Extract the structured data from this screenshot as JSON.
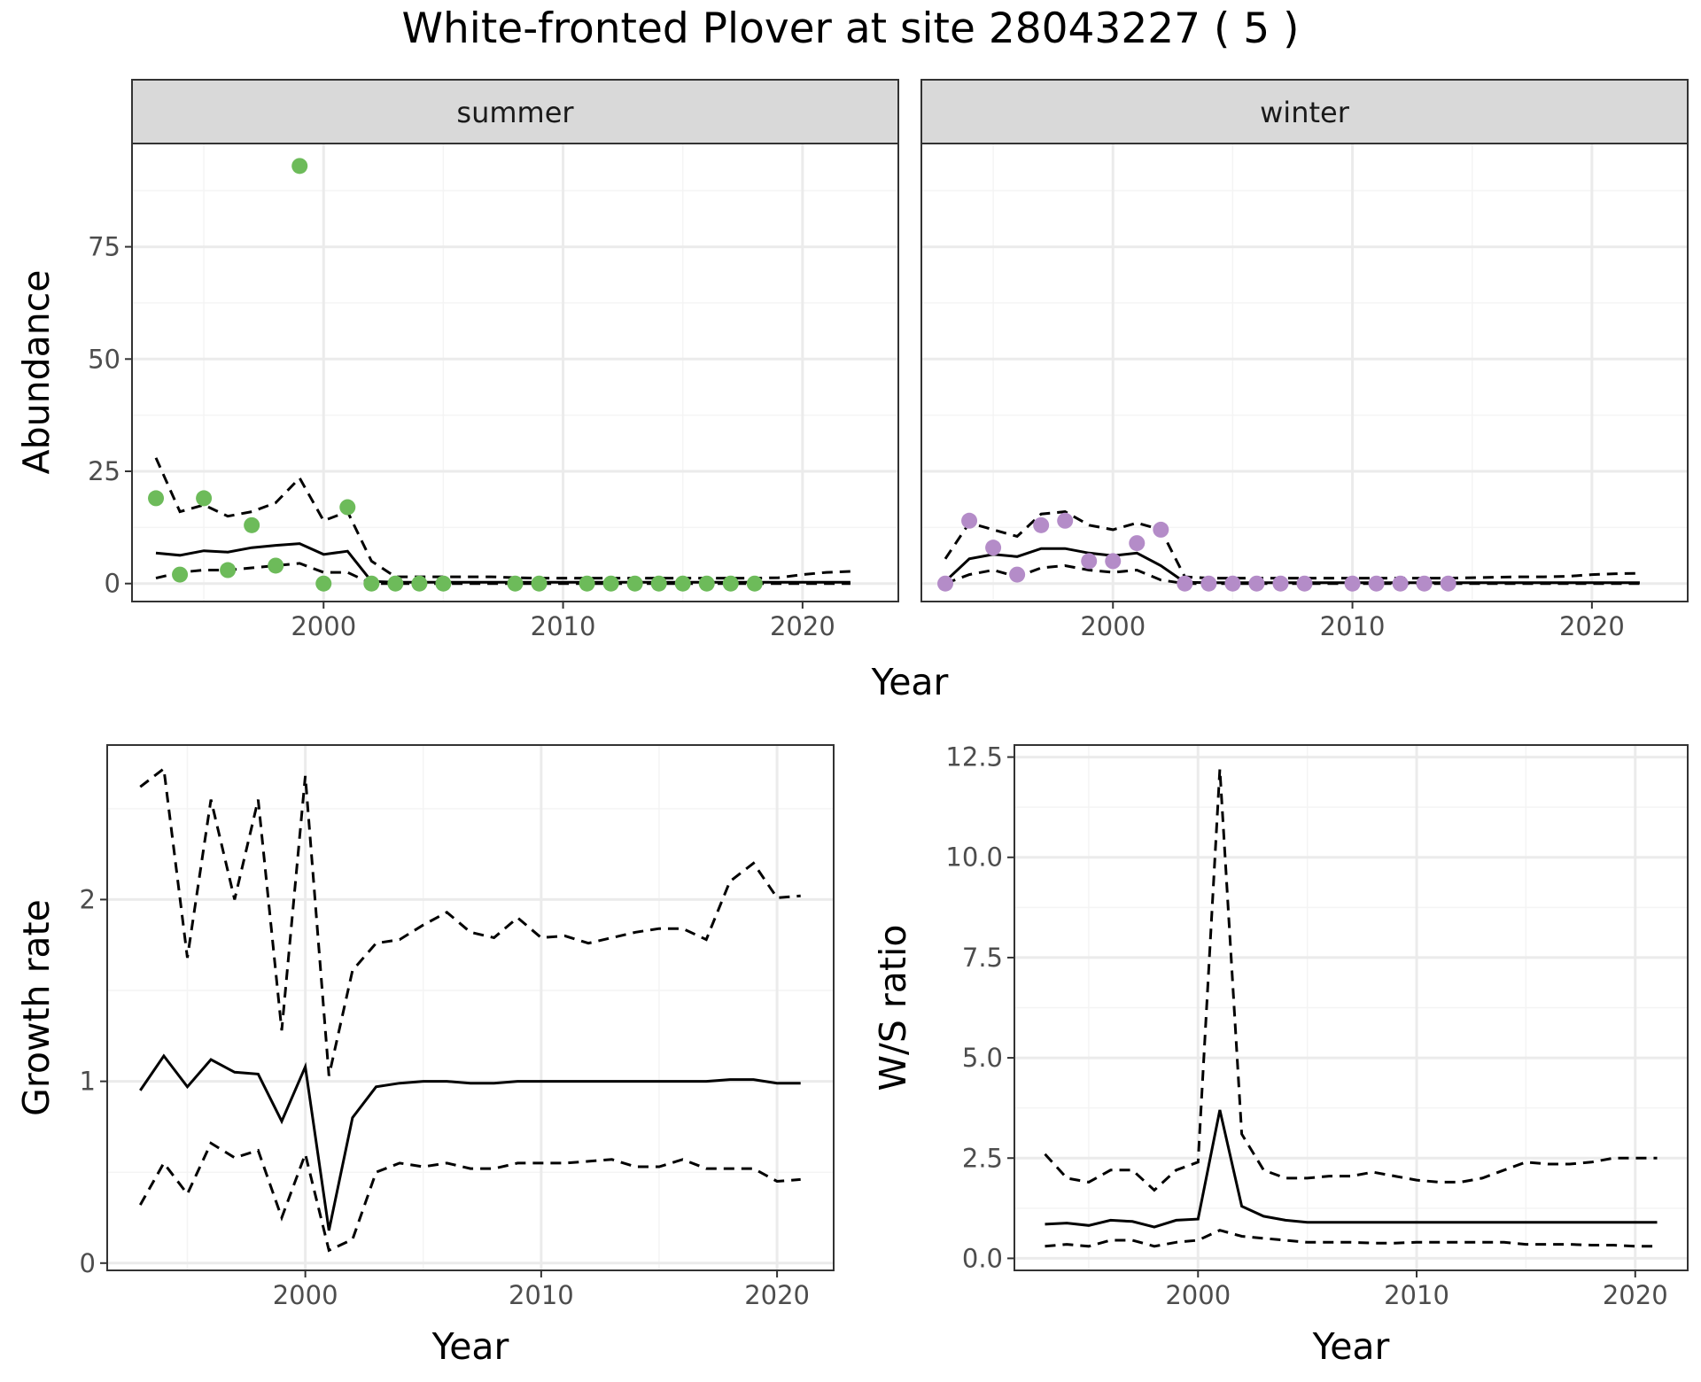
{
  "figure": {
    "title": "White-fronted Plover at site 28043227 ( 5 )"
  },
  "colors": {
    "summer_points": "#6DBB5A",
    "winter_points": "#B48CC8",
    "lines": "#000000",
    "strip_fill": "#D9D9D9",
    "grid_major": "#EBEBEB",
    "grid_minor": "#F4F4F4"
  },
  "chart_data": [
    {
      "id": "abundance",
      "type": "scatter",
      "xlabel": "Year",
      "ylabel": "Abundance",
      "xlim": [
        1992,
        2024
      ],
      "ylim": [
        -4,
        98
      ],
      "xticks": [
        2000,
        2010,
        2020
      ],
      "yticks": [
        0,
        25,
        50,
        75
      ],
      "grid": true,
      "facets": [
        {
          "label": "summer",
          "points": {
            "x": [
              1993,
              1994,
              1995,
              1996,
              1997,
              1998,
              1999,
              2000,
              2001,
              2002,
              2003,
              2004,
              2005,
              2008,
              2009,
              2011,
              2012,
              2013,
              2014,
              2015,
              2016,
              2017,
              2018
            ],
            "y": [
              19,
              2,
              19,
              3,
              13,
              4,
              93,
              0,
              17,
              0,
              0,
              0,
              0,
              0,
              0,
              0,
              0,
              0,
              0,
              0,
              0,
              0,
              0
            ]
          },
          "x": [
            1993,
            1994,
            1995,
            1996,
            1997,
            1998,
            1999,
            2000,
            2001,
            2002,
            2003,
            2004,
            2005,
            2006,
            2007,
            2008,
            2009,
            2010,
            2011,
            2012,
            2013,
            2014,
            2015,
            2016,
            2017,
            2018,
            2019,
            2020,
            2021,
            2022
          ],
          "mean": [
            6.8,
            6.3,
            7.3,
            7.0,
            8.0,
            8.5,
            8.9,
            6.5,
            7.2,
            0.5,
            0.3,
            0.3,
            0.3,
            0.3,
            0.3,
            0.3,
            0.3,
            0.3,
            0.3,
            0.3,
            0.3,
            0.3,
            0.3,
            0.3,
            0.3,
            0.3,
            0.3,
            0.3,
            0.3,
            0.3
          ],
          "upper": [
            28,
            16,
            17.5,
            15,
            16,
            18,
            23.5,
            14,
            16,
            5,
            1.5,
            1.5,
            1.5,
            1.5,
            1.5,
            1.3,
            1.2,
            1.2,
            1.2,
            1.2,
            1.2,
            1.2,
            1.2,
            1.2,
            1.2,
            1.2,
            1.3,
            2.0,
            2.5,
            2.7
          ],
          "lower": [
            1.2,
            2.5,
            3.0,
            3.0,
            3.5,
            4.0,
            4.5,
            2.5,
            2.5,
            0,
            0,
            0,
            0,
            0,
            0,
            0,
            0,
            0,
            0,
            0,
            0,
            0,
            0,
            0,
            0,
            0,
            0,
            0,
            0,
            0
          ]
        },
        {
          "label": "winter",
          "points": {
            "x": [
              1993,
              1994,
              1995,
              1996,
              1997,
              1998,
              1999,
              2000,
              2001,
              2002,
              2003,
              2004,
              2005,
              2006,
              2007,
              2008,
              2010,
              2011,
              2012,
              2013,
              2014
            ],
            "y": [
              0,
              14,
              8,
              2,
              13,
              14,
              5,
              5,
              9,
              12,
              0,
              0,
              0,
              0,
              0,
              0,
              0,
              0,
              0,
              0,
              0
            ]
          },
          "x": [
            1993,
            1994,
            1995,
            1996,
            1997,
            1998,
            1999,
            2000,
            2001,
            2002,
            2003,
            2004,
            2005,
            2006,
            2007,
            2008,
            2009,
            2010,
            2011,
            2012,
            2013,
            2014,
            2015,
            2016,
            2017,
            2018,
            2019,
            2020,
            2021,
            2022
          ],
          "mean": [
            0.5,
            5.5,
            6.5,
            6.0,
            7.8,
            7.8,
            6.8,
            6.2,
            6.8,
            4.0,
            0.3,
            0.2,
            0.2,
            0.2,
            0.2,
            0.2,
            0.2,
            0.2,
            0.2,
            0.2,
            0.2,
            0.2,
            0.2,
            0.2,
            0.2,
            0.2,
            0.2,
            0.2,
            0.2,
            0.2
          ],
          "upper": [
            5.5,
            13.5,
            12.0,
            10.5,
            15.5,
            16.0,
            13.0,
            12.0,
            13.5,
            12.0,
            1.5,
            1.2,
            1.2,
            1.2,
            1.2,
            1.2,
            1.2,
            1.2,
            1.2,
            1.2,
            1.2,
            1.2,
            1.3,
            1.4,
            1.5,
            1.5,
            1.6,
            2.0,
            2.2,
            2.3
          ],
          "lower": [
            0,
            2.0,
            3.0,
            1.5,
            3.5,
            4.0,
            3.0,
            2.5,
            3.0,
            0.8,
            0,
            0,
            0,
            0,
            0,
            0,
            0,
            0,
            0,
            0,
            0,
            0,
            0,
            0,
            0,
            0,
            0,
            0,
            0,
            0
          ]
        }
      ],
      "panel_xlabel": "Year"
    },
    {
      "id": "growth",
      "type": "line",
      "xlabel": "Year",
      "ylabel": "Growth rate",
      "xlim": [
        1991.6,
        2022.4
      ],
      "ylim": [
        -0.04,
        2.85
      ],
      "xticks": [
        2000,
        2010,
        2020
      ],
      "yticks": [
        0,
        1,
        2
      ],
      "grid": true,
      "x": [
        1993,
        1994,
        1995,
        1996,
        1997,
        1998,
        1999,
        2000,
        2001,
        2002,
        2003,
        2004,
        2005,
        2006,
        2007,
        2008,
        2009,
        2010,
        2011,
        2012,
        2013,
        2014,
        2015,
        2016,
        2017,
        2018,
        2019,
        2020,
        2021
      ],
      "mean": [
        0.95,
        1.14,
        0.97,
        1.12,
        1.05,
        1.04,
        0.78,
        1.08,
        0.18,
        0.8,
        0.97,
        0.99,
        1.0,
        1.0,
        0.99,
        0.99,
        1.0,
        1.0,
        1.0,
        1.0,
        1.0,
        1.0,
        1.0,
        1.0,
        1.0,
        1.01,
        1.01,
        0.99,
        0.99
      ],
      "upper": [
        2.62,
        2.72,
        1.68,
        2.55,
        2.0,
        2.55,
        1.28,
        2.68,
        1.03,
        1.61,
        1.76,
        1.78,
        1.86,
        1.93,
        1.82,
        1.79,
        1.9,
        1.79,
        1.8,
        1.76,
        1.79,
        1.82,
        1.84,
        1.84,
        1.78,
        2.1,
        2.2,
        2.01,
        2.02
      ],
      "lower": [
        0.32,
        0.55,
        0.38,
        0.66,
        0.58,
        0.62,
        0.25,
        0.6,
        0.07,
        0.13,
        0.5,
        0.55,
        0.53,
        0.55,
        0.52,
        0.52,
        0.55,
        0.55,
        0.55,
        0.56,
        0.57,
        0.53,
        0.53,
        0.57,
        0.52,
        0.52,
        0.52,
        0.45,
        0.46
      ]
    },
    {
      "id": "ratio",
      "type": "line",
      "xlabel": "Year",
      "ylabel": "W/S ratio",
      "xlim": [
        1991.6,
        2022.4
      ],
      "ylim": [
        -0.3,
        12.8
      ],
      "xticks": [
        2000,
        2010,
        2020
      ],
      "yticks": [
        0.0,
        2.5,
        5.0,
        7.5,
        10.0,
        12.5
      ],
      "ytick_labels": [
        "0.0",
        "2.5",
        "5.0",
        "7.5",
        "10.0",
        "12.5"
      ],
      "grid": true,
      "x": [
        1993,
        1994,
        1995,
        1996,
        1997,
        1998,
        1999,
        2000,
        2001,
        2002,
        2003,
        2004,
        2005,
        2006,
        2007,
        2008,
        2009,
        2010,
        2011,
        2012,
        2013,
        2014,
        2015,
        2016,
        2017,
        2018,
        2019,
        2020,
        2021
      ],
      "mean": [
        0.85,
        0.88,
        0.82,
        0.95,
        0.92,
        0.78,
        0.95,
        0.98,
        3.7,
        1.3,
        1.05,
        0.95,
        0.9,
        0.9,
        0.9,
        0.9,
        0.9,
        0.9,
        0.9,
        0.9,
        0.9,
        0.9,
        0.9,
        0.9,
        0.9,
        0.9,
        0.9,
        0.9,
        0.9
      ],
      "upper": [
        2.6,
        2.0,
        1.9,
        2.2,
        2.2,
        1.7,
        2.2,
        2.4,
        12.2,
        3.1,
        2.2,
        2.0,
        2.0,
        2.05,
        2.05,
        2.15,
        2.05,
        1.95,
        1.9,
        1.9,
        2.0,
        2.2,
        2.4,
        2.35,
        2.35,
        2.4,
        2.5,
        2.5,
        2.5
      ],
      "lower": [
        0.3,
        0.35,
        0.3,
        0.45,
        0.45,
        0.3,
        0.4,
        0.45,
        0.7,
        0.55,
        0.5,
        0.45,
        0.4,
        0.4,
        0.4,
        0.38,
        0.38,
        0.4,
        0.4,
        0.4,
        0.4,
        0.4,
        0.35,
        0.35,
        0.35,
        0.33,
        0.33,
        0.3,
        0.3
      ]
    }
  ]
}
